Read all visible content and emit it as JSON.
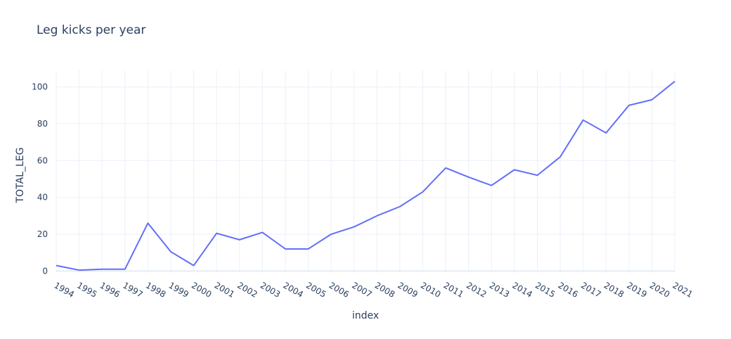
{
  "chart_data": {
    "type": "line",
    "title": "Leg kicks per year",
    "xlabel": "index",
    "ylabel": "TOTAL_LEG",
    "x": [
      "1994",
      "1995",
      "1996",
      "1997",
      "1998",
      "1999",
      "2000",
      "2001",
      "2002",
      "2003",
      "2004",
      "2005",
      "2006",
      "2007",
      "2008",
      "2009",
      "2010",
      "2011",
      "2012",
      "2013",
      "2014",
      "2015",
      "2016",
      "2017",
      "2018",
      "2019",
      "2020",
      "2021"
    ],
    "series": [
      {
        "name": "",
        "values": [
          3,
          0.5,
          1,
          1,
          26,
          10.5,
          3,
          20.5,
          17,
          21,
          12,
          12,
          20,
          24,
          30,
          35,
          43,
          56,
          51,
          46.5,
          55,
          52,
          62,
          82,
          75,
          90,
          93,
          103
        ]
      }
    ],
    "yticks": [
      0,
      20,
      40,
      60,
      80,
      100
    ],
    "ylim": [
      -1,
      109
    ],
    "grid": true,
    "line_color": "#636efa",
    "grid_color": "#ebf0f8"
  }
}
